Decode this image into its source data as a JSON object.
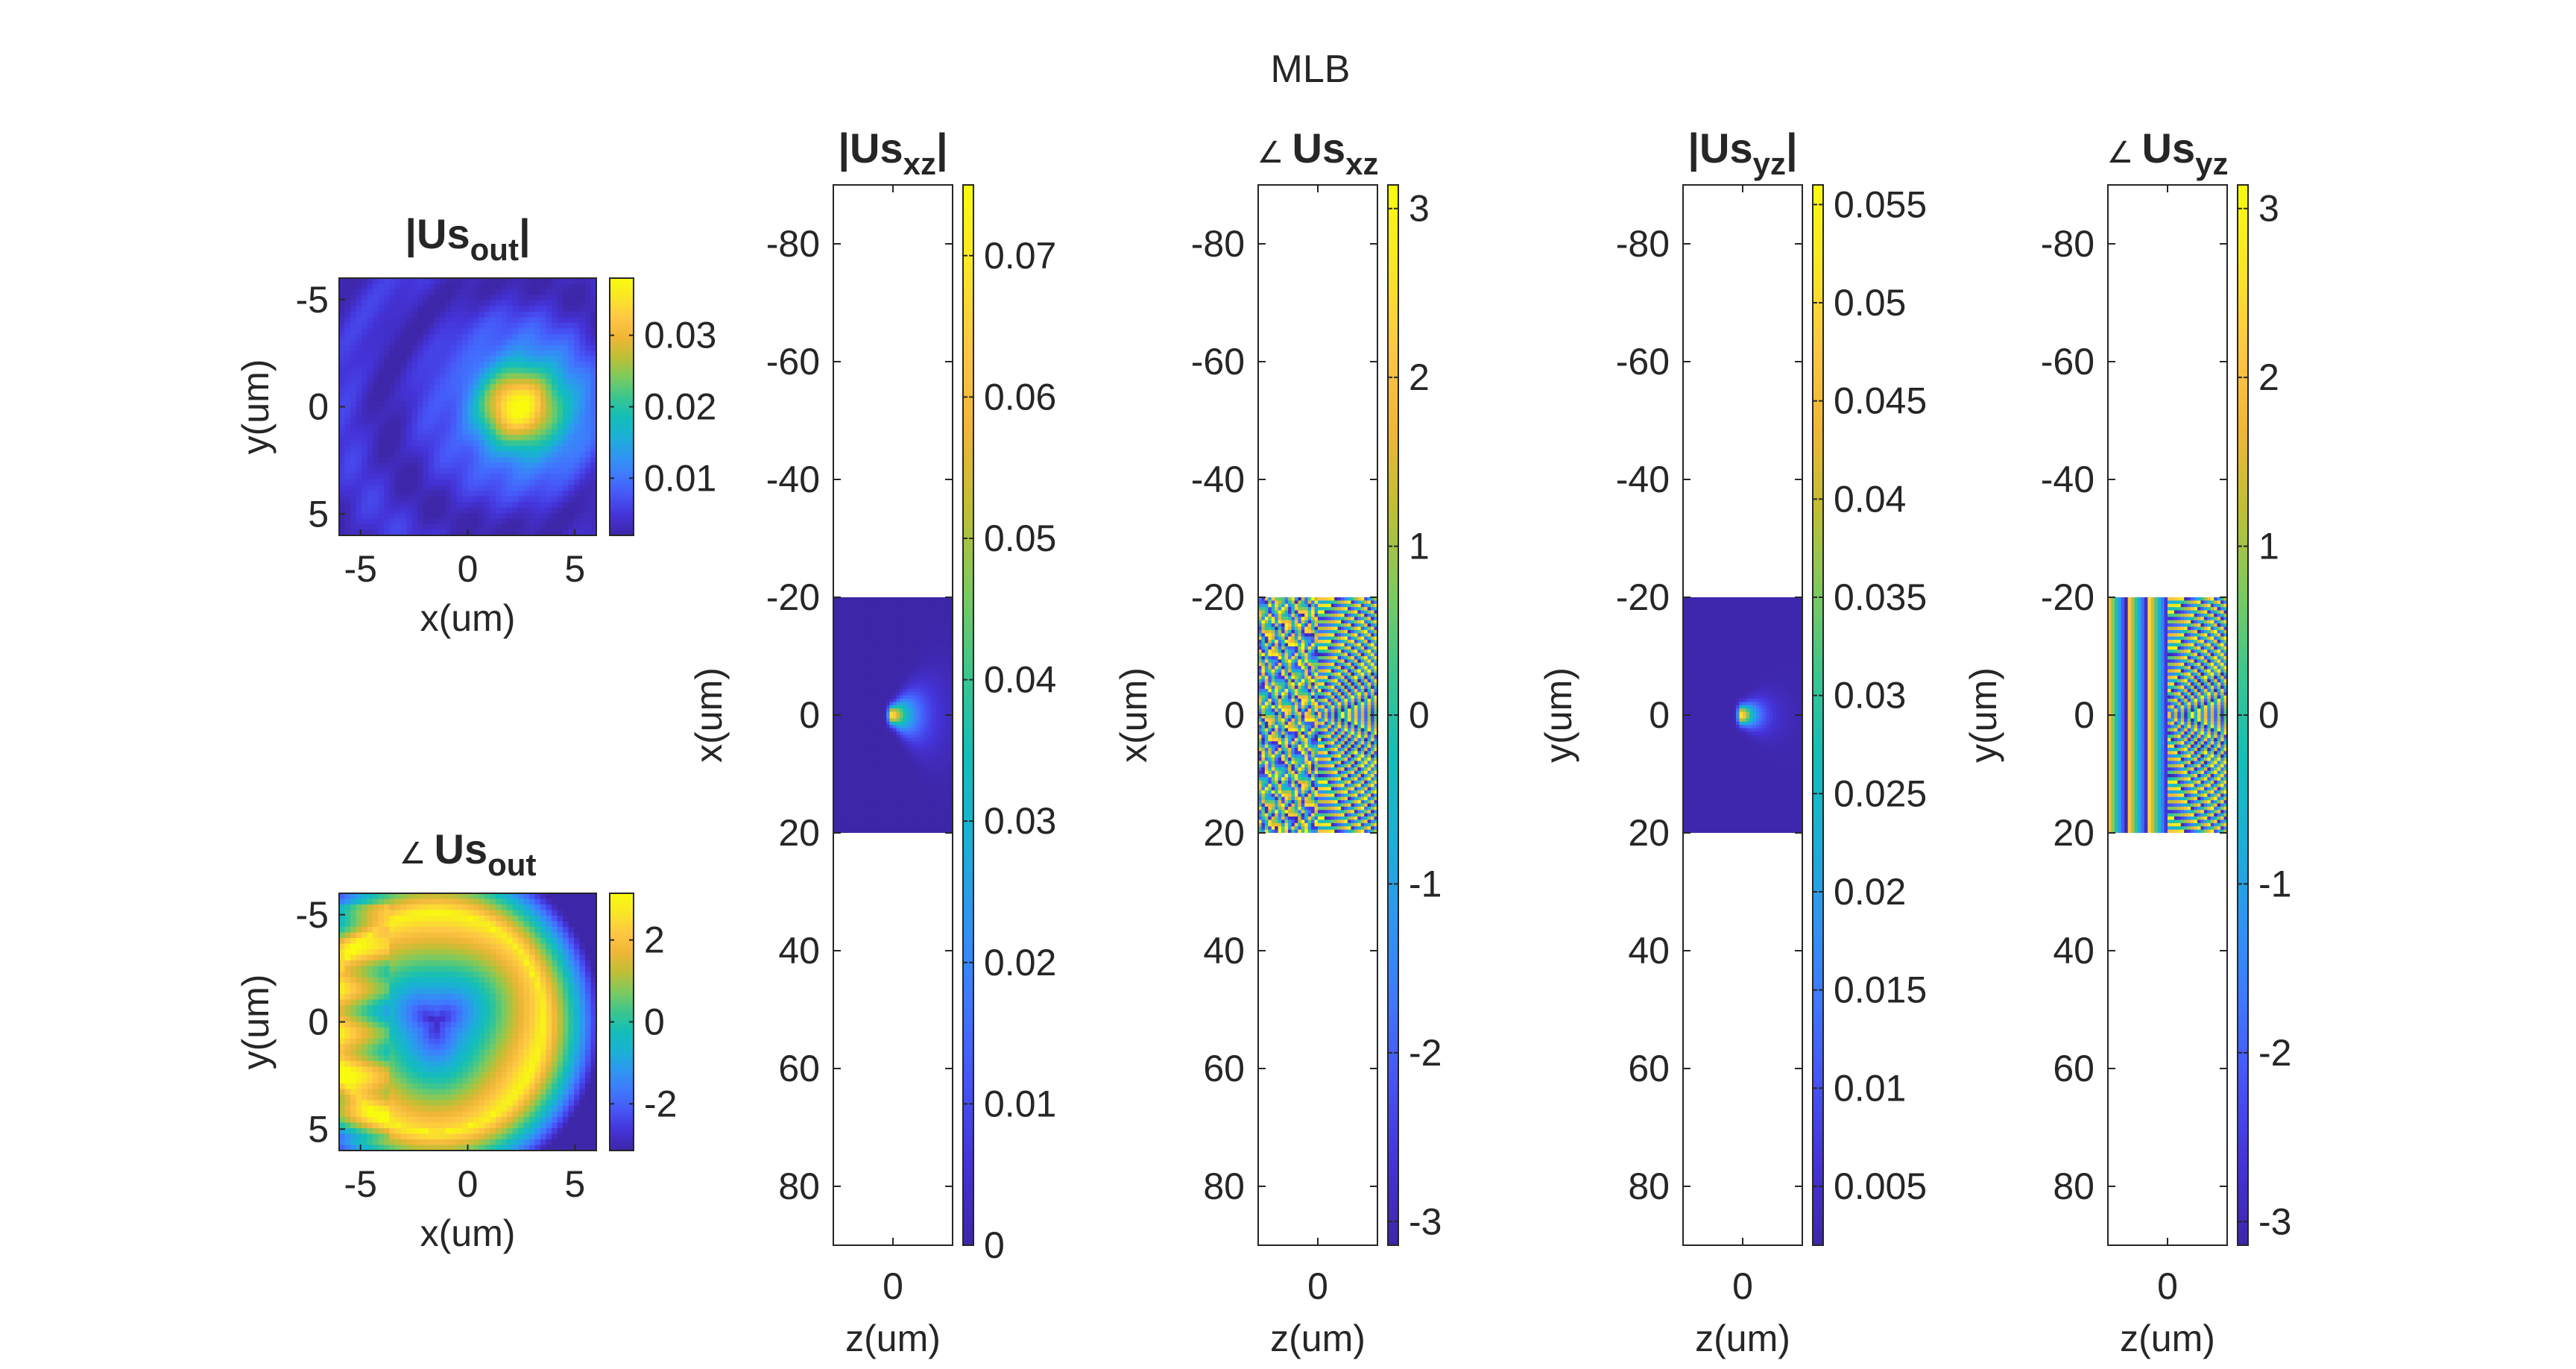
{
  "figure": {
    "suptitle": "MLB"
  },
  "colors": {
    "parula": [
      "#3e26a8",
      "#4433d8",
      "#4754f6",
      "#3f79fe",
      "#2f96f1",
      "#1ab1d5",
      "#13beb8",
      "#3bc68e",
      "#7cca5f",
      "#bebf35",
      "#efb637",
      "#fec744",
      "#f9e626",
      "#f9fb0e"
    ],
    "axis": "#262626"
  },
  "chart_data": [
    {
      "id": "us-out-mag",
      "type": "heatmap",
      "title": {
        "main": "|Us",
        "sub": "out",
        "tail": "|"
      },
      "xlabel": "x(um)",
      "ylabel": "y(um)",
      "xticks": [
        "-5",
        "0",
        "5"
      ],
      "yticks": [
        "-5",
        "0",
        "5"
      ],
      "xlim": [
        -6,
        6
      ],
      "ylim": [
        -6,
        6
      ],
      "colorbar": {
        "range": [
          0.002,
          0.038
        ],
        "ticks": [
          "0.01",
          "0.02",
          "0.03"
        ],
        "tick_values": [
          0.01,
          0.02,
          0.03
        ]
      },
      "content": "gaussian spot centered near x=2.5, y=0 with faint ring around x=-3"
    },
    {
      "id": "us-out-phase",
      "type": "heatmap",
      "title": {
        "main": "Us",
        "sub": "out",
        "prefix": "∠"
      },
      "xlabel": "x(um)",
      "ylabel": "y(um)",
      "xticks": [
        "-5",
        "0",
        "5"
      ],
      "yticks": [
        "-5",
        "0",
        "5"
      ],
      "xlim": [
        -6,
        6
      ],
      "ylim": [
        -6,
        6
      ],
      "colorbar": {
        "range": [
          -3.14,
          3.14
        ],
        "ticks": [
          "2",
          "0",
          "-2"
        ],
        "tick_values": [
          2,
          0,
          -2
        ]
      },
      "content": "wrapped phase: dark center around (-1.5, 0), circular yellow boundary radius ~5"
    },
    {
      "id": "us-xz-mag",
      "type": "heatmap",
      "title": {
        "main": "|Us",
        "sub": "xz",
        "tail": "|"
      },
      "xlabel": "z(um)",
      "ylabel": "x(um)",
      "xticks": [
        "0"
      ],
      "yticks": [
        "-80",
        "-60",
        "-40",
        "-20",
        "0",
        "20",
        "40",
        "60",
        "80"
      ],
      "ylim": [
        -90,
        90
      ],
      "data_band": [
        -20,
        20
      ],
      "colorbar": {
        "range": [
          0,
          0.075
        ],
        "ticks": [
          "0.07",
          "0.06",
          "0.05",
          "0.04",
          "0.03",
          "0.02",
          "0.01",
          "0"
        ],
        "tick_values": [
          0.07,
          0.06,
          0.05,
          0.04,
          0.03,
          0.02,
          0.01,
          0
        ]
      },
      "content": "dark field with bright focus near z=0, x=0 spreading to +z"
    },
    {
      "id": "us-xz-phase",
      "type": "heatmap",
      "title": {
        "main": "Us",
        "sub": "xz",
        "prefix": "∠"
      },
      "xlabel": "z(um)",
      "ylabel": "x(um)",
      "xticks": [
        "0"
      ],
      "yticks": [
        "-80",
        "-60",
        "-40",
        "-20",
        "0",
        "20",
        "40",
        "60",
        "80"
      ],
      "ylim": [
        -90,
        90
      ],
      "data_band": [
        -20,
        20
      ],
      "colorbar": {
        "range": [
          -3.14,
          3.14
        ],
        "ticks": [
          "3",
          "2",
          "1",
          "0",
          "-1",
          "-2",
          "-3"
        ],
        "tick_values": [
          3,
          2,
          1,
          0,
          -1,
          -2,
          -3
        ]
      },
      "content": "noisy wrapped phase for z<0, concentric arcs for z>0"
    },
    {
      "id": "us-yz-mag",
      "type": "heatmap",
      "title": {
        "main": "|Us",
        "sub": "yz",
        "tail": "|"
      },
      "xlabel": "z(um)",
      "ylabel": "y(um)",
      "xticks": [
        "0"
      ],
      "yticks": [
        "-80",
        "-60",
        "-40",
        "-20",
        "0",
        "20",
        "40",
        "60",
        "80"
      ],
      "ylim": [
        -90,
        90
      ],
      "data_band": [
        -20,
        20
      ],
      "colorbar": {
        "range": [
          0.002,
          0.056
        ],
        "ticks": [
          "0.055",
          "0.05",
          "0.045",
          "0.04",
          "0.035",
          "0.03",
          "0.025",
          "0.02",
          "0.015",
          "0.01",
          "0.005"
        ],
        "tick_values": [
          0.055,
          0.05,
          0.045,
          0.04,
          0.035,
          0.03,
          0.025,
          0.02,
          0.015,
          0.01,
          0.005
        ]
      },
      "content": "dark field with small bright focus at z=0, y=0"
    },
    {
      "id": "us-yz-phase",
      "type": "heatmap",
      "title": {
        "main": "Us",
        "sub": "yz",
        "prefix": "∠"
      },
      "xlabel": "z(um)",
      "ylabel": "y(um)",
      "xticks": [
        "0"
      ],
      "yticks": [
        "-80",
        "-60",
        "-40",
        "-20",
        "0",
        "20",
        "40",
        "60",
        "80"
      ],
      "ylim": [
        -90,
        90
      ],
      "data_band": [
        -20,
        20
      ],
      "colorbar": {
        "range": [
          -3.14,
          3.14
        ],
        "ticks": [
          "3",
          "2",
          "1",
          "0",
          "-1",
          "-2",
          "-3"
        ],
        "tick_values": [
          3,
          2,
          1,
          0,
          -1,
          -2,
          -3
        ]
      },
      "content": "vertical stripes for z<0, concentric arcs for z>0"
    }
  ]
}
